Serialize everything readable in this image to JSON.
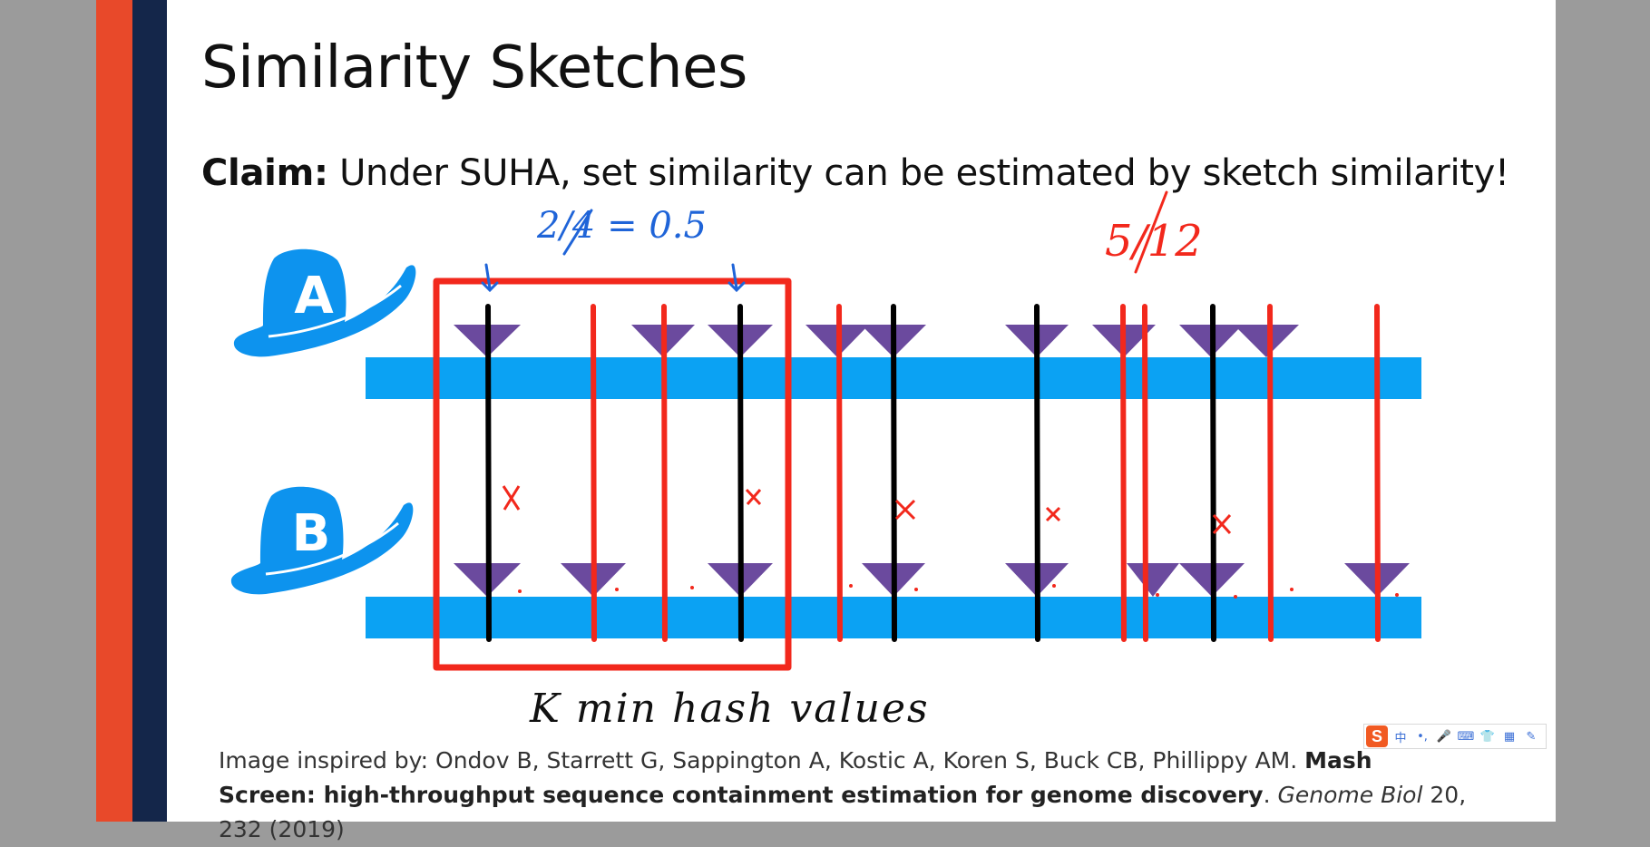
{
  "slide": {
    "title": "Similarity Sketches",
    "claim_label": "Claim:",
    "claim_text": " Under SUHA, set similarity can be estimated by sketch similarity!"
  },
  "diagram": {
    "set_a_label": "A",
    "set_b_label": "B",
    "colors": {
      "bar": "#0ba2f3",
      "triangle": "#6b4a9e",
      "ink_black": "#000000",
      "ink_red": "#f2281c",
      "ink_blue": "#1f64d8",
      "hat": "#0d93ee"
    }
  },
  "annotations": {
    "left_fraction": "2/4 = 0.5",
    "right_fraction": "5/12",
    "bottom_note": "K min hash values"
  },
  "citation": {
    "prefix": "Image inspired by: Ondov B, Starrett G, Sappington A, Kostic A, Koren S, Buck CB, Phillippy AM. ",
    "title": "Mash Screen: high-throughput sequence containment estimation for genome discovery",
    "mid": ". ",
    "journal": "Genome Biol",
    "suffix": " 20, 232 (2019)"
  },
  "ime_toolbar": {
    "logo": "S",
    "lang": "中",
    "punct": "•,",
    "mic_icon": "🎤",
    "keyboard_icon": "⌨",
    "skin_icon": "👕",
    "apps_icon": "▦",
    "more_icon": "✎"
  }
}
